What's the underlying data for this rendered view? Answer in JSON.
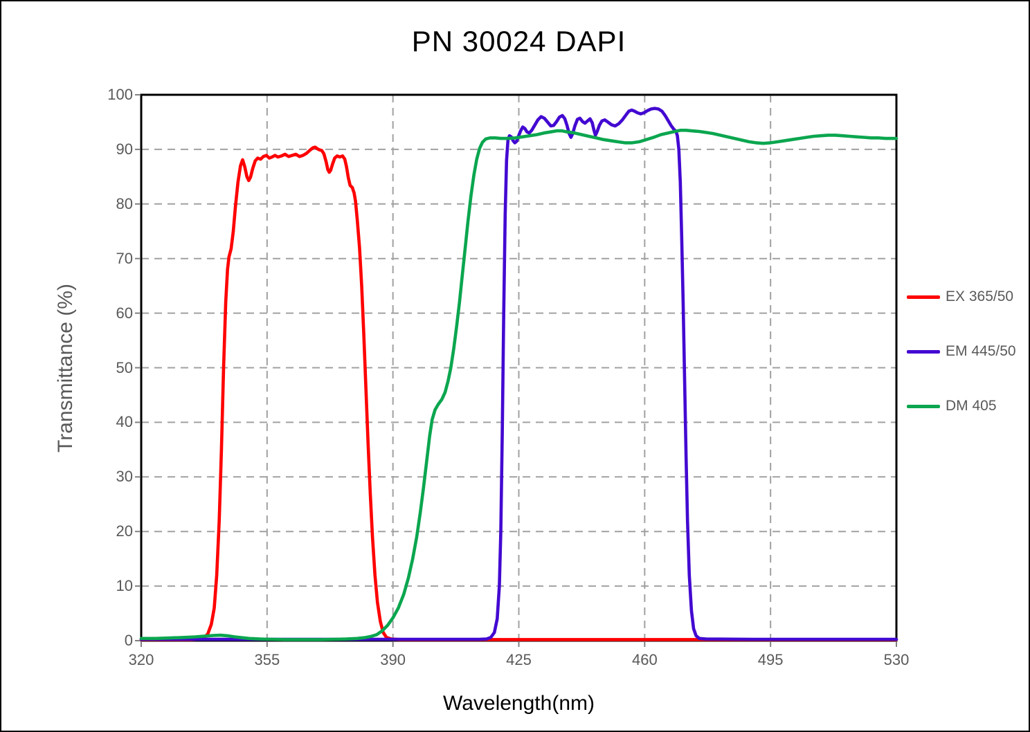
{
  "title": "PN 30024 DAPI",
  "axes": {
    "x": {
      "label": "Wavelength(nm)",
      "min": 320,
      "max": 530,
      "ticks": [
        320,
        355,
        390,
        425,
        460,
        495,
        530
      ]
    },
    "y": {
      "label": "Transmittance (%)",
      "min": 0,
      "max": 100,
      "ticks": [
        0,
        10,
        20,
        30,
        40,
        50,
        60,
        70,
        80,
        90,
        100
      ]
    }
  },
  "legend": {
    "position": "right",
    "items": [
      {
        "label": "EX 365/50",
        "color": "#ff0000"
      },
      {
        "label": "EM 445/50",
        "color": "#4309d1"
      },
      {
        "label": "DM 405",
        "color": "#0ba64f"
      }
    ]
  },
  "style": {
    "grid_color": "#a0a0a0",
    "tick_text_color": "#595959",
    "axis_border_color": "#000000",
    "tick_mark_color": "#808080",
    "curve_width": 4.6
  },
  "chart_data": {
    "type": "line",
    "title": "PN 30024 DAPI",
    "xlabel": "Wavelength(nm)",
    "ylabel": "Transmittance (%)",
    "xlim": [
      320,
      530
    ],
    "ylim": [
      0,
      100
    ],
    "grid": true,
    "legend_position": "right",
    "series": [
      {
        "name": "EX 365/50",
        "color": "#ff0000",
        "points": [
          [
            320,
            0.2
          ],
          [
            328,
            0.2
          ],
          [
            334,
            0.2
          ],
          [
            336,
            0.3
          ],
          [
            337.5,
            0.6
          ],
          [
            338.5,
            1.2
          ],
          [
            339.5,
            3
          ],
          [
            340.3,
            6
          ],
          [
            341,
            12
          ],
          [
            341.7,
            22
          ],
          [
            342.3,
            35
          ],
          [
            342.9,
            50
          ],
          [
            343.5,
            62
          ],
          [
            344,
            68
          ],
          [
            344.4,
            70.3
          ],
          [
            345,
            71.8
          ],
          [
            345.6,
            75
          ],
          [
            346.2,
            79.5
          ],
          [
            346.9,
            84
          ],
          [
            347.6,
            87
          ],
          [
            348.2,
            88.1
          ],
          [
            348.8,
            86.8
          ],
          [
            349.4,
            85
          ],
          [
            349.9,
            84.3
          ],
          [
            350.4,
            84.9
          ],
          [
            351,
            86.5
          ],
          [
            351.7,
            87.9
          ],
          [
            352.4,
            88.4
          ],
          [
            353.2,
            88.2
          ],
          [
            354,
            88.7
          ],
          [
            354.8,
            88.9
          ],
          [
            355.6,
            88.4
          ],
          [
            356.4,
            88.6
          ],
          [
            357.2,
            88.9
          ],
          [
            358,
            88.6
          ],
          [
            359,
            88.8
          ],
          [
            360,
            89.1
          ],
          [
            361,
            88.7
          ],
          [
            362,
            88.9
          ],
          [
            363,
            89.1
          ],
          [
            364,
            88.7
          ],
          [
            365,
            88.9
          ],
          [
            366,
            89.3
          ],
          [
            367,
            89.9
          ],
          [
            367.8,
            90.3
          ],
          [
            368.4,
            90.4
          ],
          [
            369,
            90.1
          ],
          [
            369.6,
            89.9
          ],
          [
            370.2,
            89.8
          ],
          [
            370.8,
            89.2
          ],
          [
            371.4,
            87.8
          ],
          [
            371.9,
            86.3
          ],
          [
            372.3,
            85.8
          ],
          [
            372.7,
            86.2
          ],
          [
            373.2,
            87.3
          ],
          [
            373.8,
            88.4
          ],
          [
            374.5,
            88.8
          ],
          [
            375.2,
            88.6
          ],
          [
            376,
            88.8
          ],
          [
            376.6,
            88.2
          ],
          [
            377.1,
            86.8
          ],
          [
            377.6,
            84.8
          ],
          [
            378.1,
            83.4
          ],
          [
            378.7,
            83.0
          ],
          [
            379.2,
            82.0
          ],
          [
            379.6,
            80.5
          ],
          [
            380.1,
            77
          ],
          [
            380.7,
            72
          ],
          [
            381.3,
            65
          ],
          [
            381.9,
            56
          ],
          [
            382.5,
            46
          ],
          [
            383.1,
            36
          ],
          [
            383.7,
            27
          ],
          [
            384.3,
            19
          ],
          [
            385,
            12
          ],
          [
            385.7,
            7
          ],
          [
            386.5,
            3.5
          ],
          [
            387.3,
            1.5
          ],
          [
            388.2,
            0.6
          ],
          [
            389.5,
            0.3
          ],
          [
            392,
            0.2
          ],
          [
            400,
            0.2
          ],
          [
            420,
            0.2
          ],
          [
            450,
            0.2
          ],
          [
            480,
            0.2
          ],
          [
            510,
            0.2
          ],
          [
            530,
            0.2
          ]
        ]
      },
      {
        "name": "EM 445/50",
        "color": "#4309d1",
        "points": [
          [
            320,
            0.25
          ],
          [
            350,
            0.25
          ],
          [
            380,
            0.25
          ],
          [
            400,
            0.25
          ],
          [
            410,
            0.25
          ],
          [
            414,
            0.25
          ],
          [
            416,
            0.3
          ],
          [
            417.2,
            0.6
          ],
          [
            418.2,
            1.5
          ],
          [
            419,
            4
          ],
          [
            419.6,
            10
          ],
          [
            420,
            20
          ],
          [
            420.4,
            38
          ],
          [
            420.8,
            60
          ],
          [
            421.2,
            78
          ],
          [
            421.6,
            88
          ],
          [
            422,
            91.8
          ],
          [
            422.4,
            92.5
          ],
          [
            422.9,
            92.3
          ],
          [
            423.4,
            91.6
          ],
          [
            423.9,
            91.2
          ],
          [
            424.4,
            91.5
          ],
          [
            424.9,
            92.4
          ],
          [
            425.5,
            93.4
          ],
          [
            426.1,
            94.1
          ],
          [
            426.7,
            93.8
          ],
          [
            427.3,
            93.2
          ],
          [
            427.9,
            93.0
          ],
          [
            428.6,
            93.5
          ],
          [
            429.4,
            94.4
          ],
          [
            430.3,
            95.4
          ],
          [
            431.2,
            96.0
          ],
          [
            432.1,
            95.7
          ],
          [
            433,
            95.0
          ],
          [
            433.9,
            94.3
          ],
          [
            434.7,
            94.4
          ],
          [
            435.5,
            95.1
          ],
          [
            436.3,
            95.9
          ],
          [
            437.1,
            96.2
          ],
          [
            437.8,
            95.6
          ],
          [
            438.4,
            94.4
          ],
          [
            439,
            92.9
          ],
          [
            439.5,
            92.2
          ],
          [
            440,
            92.9
          ],
          [
            440.6,
            94.3
          ],
          [
            441.3,
            95.5
          ],
          [
            442,
            95.7
          ],
          [
            442.7,
            95.1
          ],
          [
            443.4,
            94.8
          ],
          [
            444.1,
            95.2
          ],
          [
            444.8,
            95.6
          ],
          [
            445.4,
            94.9
          ],
          [
            445.9,
            93.5
          ],
          [
            446.3,
            92.6
          ],
          [
            446.8,
            93.3
          ],
          [
            447.4,
            94.4
          ],
          [
            448.1,
            95.2
          ],
          [
            448.9,
            95.4
          ],
          [
            449.8,
            95.0
          ],
          [
            450.8,
            94.5
          ],
          [
            451.8,
            94.3
          ],
          [
            452.8,
            94.7
          ],
          [
            453.8,
            95.4
          ],
          [
            454.8,
            96.3
          ],
          [
            455.6,
            97.0
          ],
          [
            456.4,
            97.2
          ],
          [
            457.2,
            97.0
          ],
          [
            458,
            96.7
          ],
          [
            458.9,
            96.5
          ],
          [
            459.8,
            96.7
          ],
          [
            460.8,
            97.1
          ],
          [
            461.8,
            97.4
          ],
          [
            462.8,
            97.5
          ],
          [
            463.8,
            97.4
          ],
          [
            464.8,
            97.0
          ],
          [
            465.7,
            96.2
          ],
          [
            466.5,
            95.3
          ],
          [
            467.3,
            94.4
          ],
          [
            468.1,
            93.7
          ],
          [
            468.7,
            93.3
          ],
          [
            469.1,
            92.5
          ],
          [
            469.5,
            90
          ],
          [
            469.9,
            84
          ],
          [
            470.3,
            74
          ],
          [
            470.7,
            62
          ],
          [
            471.1,
            48
          ],
          [
            471.5,
            34
          ],
          [
            471.9,
            22
          ],
          [
            472.4,
            12
          ],
          [
            473,
            5.5
          ],
          [
            473.6,
            2.2
          ],
          [
            474.3,
            0.9
          ],
          [
            475.2,
            0.4
          ],
          [
            477,
            0.3
          ],
          [
            490,
            0.25
          ],
          [
            510,
            0.25
          ],
          [
            530,
            0.25
          ]
        ]
      },
      {
        "name": "DM 405",
        "color": "#0ba64f",
        "points": [
          [
            320,
            0.4
          ],
          [
            324,
            0.4
          ],
          [
            328,
            0.5
          ],
          [
            332,
            0.6
          ],
          [
            335,
            0.7
          ],
          [
            338,
            0.85
          ],
          [
            340,
            0.95
          ],
          [
            342,
            1.0
          ],
          [
            344,
            0.9
          ],
          [
            346,
            0.7
          ],
          [
            348,
            0.55
          ],
          [
            350,
            0.4
          ],
          [
            353,
            0.3
          ],
          [
            356,
            0.25
          ],
          [
            360,
            0.2
          ],
          [
            365,
            0.2
          ],
          [
            370,
            0.2
          ],
          [
            374,
            0.25
          ],
          [
            377,
            0.3
          ],
          [
            380,
            0.4
          ],
          [
            382,
            0.55
          ],
          [
            384,
            0.8
          ],
          [
            385.5,
            1.1
          ],
          [
            387,
            1.8
          ],
          [
            388.5,
            2.8
          ],
          [
            390,
            4.2
          ],
          [
            391.5,
            6
          ],
          [
            393,
            8.5
          ],
          [
            394.3,
            11.5
          ],
          [
            395.5,
            15
          ],
          [
            396.6,
            19
          ],
          [
            397.6,
            23.5
          ],
          [
            398.5,
            28
          ],
          [
            399.4,
            33
          ],
          [
            400.2,
            37.5
          ],
          [
            400.9,
            40.5
          ],
          [
            401.7,
            42.3
          ],
          [
            402.6,
            43.3
          ],
          [
            403.6,
            44.2
          ],
          [
            404.5,
            45.5
          ],
          [
            405.3,
            47.5
          ],
          [
            406.1,
            50
          ],
          [
            406.9,
            53.5
          ],
          [
            407.7,
            57.5
          ],
          [
            408.5,
            62
          ],
          [
            409.3,
            67
          ],
          [
            410.1,
            72
          ],
          [
            410.9,
            77
          ],
          [
            411.7,
            81.5
          ],
          [
            412.5,
            85.3
          ],
          [
            413.3,
            88.2
          ],
          [
            414.1,
            90.2
          ],
          [
            414.9,
            91.3
          ],
          [
            415.8,
            91.9
          ],
          [
            417,
            92.1
          ],
          [
            418.5,
            92.1
          ],
          [
            420,
            92.0
          ],
          [
            422,
            92.0
          ],
          [
            424,
            92.1
          ],
          [
            426,
            92.3
          ],
          [
            428,
            92.5
          ],
          [
            430,
            92.7
          ],
          [
            432,
            93.0
          ],
          [
            433.8,
            93.2
          ],
          [
            435.5,
            93.4
          ],
          [
            437,
            93.4
          ],
          [
            438.5,
            93.2
          ],
          [
            440.5,
            93.0
          ],
          [
            442.5,
            92.7
          ],
          [
            444.5,
            92.4
          ],
          [
            446.5,
            92.1
          ],
          [
            448.5,
            91.8
          ],
          [
            450.5,
            91.6
          ],
          [
            452.5,
            91.4
          ],
          [
            454.5,
            91.2
          ],
          [
            456.5,
            91.2
          ],
          [
            458.5,
            91.4
          ],
          [
            460.5,
            91.8
          ],
          [
            462.5,
            92.2
          ],
          [
            464.5,
            92.7
          ],
          [
            466.5,
            93.0
          ],
          [
            468.5,
            93.3
          ],
          [
            470,
            93.5
          ],
          [
            471.5,
            93.5
          ],
          [
            473,
            93.4
          ],
          [
            475,
            93.3
          ],
          [
            477,
            93.1
          ],
          [
            479,
            92.9
          ],
          [
            481,
            92.6
          ],
          [
            483,
            92.3
          ],
          [
            485,
            92.0
          ],
          [
            487,
            91.7
          ],
          [
            489,
            91.4
          ],
          [
            491,
            91.2
          ],
          [
            493,
            91.1
          ],
          [
            495,
            91.2
          ],
          [
            497,
            91.4
          ],
          [
            499,
            91.6
          ],
          [
            501,
            91.8
          ],
          [
            503,
            92.0
          ],
          [
            505,
            92.2
          ],
          [
            507,
            92.4
          ],
          [
            509,
            92.5
          ],
          [
            511,
            92.6
          ],
          [
            513,
            92.6
          ],
          [
            515,
            92.5
          ],
          [
            517,
            92.4
          ],
          [
            519,
            92.3
          ],
          [
            521,
            92.2
          ],
          [
            523,
            92.1
          ],
          [
            525,
            92.1
          ],
          [
            527,
            92.0
          ],
          [
            530,
            92.0
          ]
        ]
      }
    ]
  }
}
